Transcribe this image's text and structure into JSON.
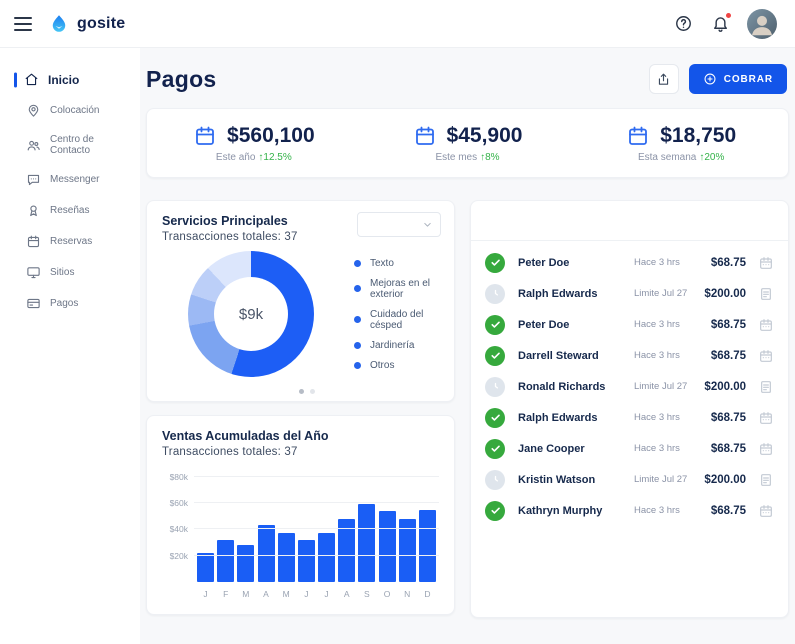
{
  "topbar": {
    "brand": "gosite",
    "icons": [
      "menu-icon",
      "gosite-logo-icon",
      "help-icon",
      "bell-icon",
      "avatar"
    ],
    "has_notification_badge": true
  },
  "sidebar": {
    "items": [
      {
        "label": "Inicio",
        "icon": "home",
        "active": true
      },
      {
        "label": "Colocación",
        "icon": "location-pin",
        "active": false
      },
      {
        "label": "Centro de Contacto",
        "icon": "contacts",
        "active": false
      },
      {
        "label": "Messenger",
        "icon": "chat",
        "active": false
      },
      {
        "label": "Reseñas",
        "icon": "badge",
        "active": false
      },
      {
        "label": "Reservas",
        "icon": "calendar",
        "active": false
      },
      {
        "label": "Sitios",
        "icon": "monitor",
        "active": false
      },
      {
        "label": "Pagos",
        "icon": "credit-card",
        "active": false
      }
    ]
  },
  "header": {
    "title": "Pagos",
    "collect_button": "COBRAR"
  },
  "stats": [
    {
      "amount": "$560,100",
      "label": "Este año",
      "change": "↑12.5%"
    },
    {
      "amount": "$45,900",
      "label": "Este mes",
      "change": "↑8%"
    },
    {
      "amount": "$18,750",
      "label": "Esta semana",
      "change": "↑20%"
    }
  ],
  "colors": {
    "primary_blue": "#1355e9",
    "bar_blue": "#1a5ef5",
    "green": "#35b34a",
    "navy": "#14264c"
  },
  "chart_data": [
    {
      "type": "pie",
      "title": "Servicios Principales",
      "subtitle": "Transacciones totales: 37",
      "center_label": "$9k",
      "categories": [
        "Texto",
        "Mejoras en el exterior",
        "Cuidado del césped",
        "Jardinería",
        "Otros"
      ],
      "values_percent": [
        55,
        17,
        8,
        8,
        12
      ],
      "slice_colors": [
        "#1d5ef5",
        "#7ca4f1",
        "#9cb9f4",
        "#bccff8",
        "#dce6fc"
      ],
      "legend_position": "right",
      "legend_dot_color": "#2563eb",
      "pagination_dot_colors": [
        "#b6bcc6",
        "#e2e5ea"
      ]
    },
    {
      "type": "bar",
      "title": "Ventas Acumuladas del Año",
      "subtitle": "Transacciones totales: 37",
      "categories": [
        "J",
        "F",
        "M",
        "A",
        "M",
        "J",
        "J",
        "A",
        "S",
        "O",
        "N",
        "D"
      ],
      "values": [
        22,
        32,
        28,
        43,
        37,
        32,
        37,
        48,
        59,
        54,
        48,
        55
      ],
      "unit": "thousands USD",
      "yticks": [
        80,
        60,
        40,
        20
      ],
      "ytick_labels": [
        "$80k",
        "$60k",
        "$40k",
        "$20k"
      ],
      "ylim": [
        0,
        85
      ],
      "grid": true
    }
  ],
  "transactions": {
    "rows": [
      {
        "name": "Peter Doe",
        "status": "paid",
        "time": "Hace 3 hrs",
        "amount": "$68.75"
      },
      {
        "name": "Ralph Edwards",
        "status": "pending",
        "time": "Limite Jul 27",
        "amount": "$200.00"
      },
      {
        "name": "Peter Doe",
        "status": "paid",
        "time": "Hace 3 hrs",
        "amount": "$68.75"
      },
      {
        "name": "Darrell Steward",
        "status": "paid",
        "time": "Hace 3 hrs",
        "amount": "$68.75"
      },
      {
        "name": "Ronald Richards",
        "status": "pending",
        "time": "Limite Jul 27",
        "amount": "$200.00"
      },
      {
        "name": "Ralph Edwards",
        "status": "paid",
        "time": "Hace 3 hrs",
        "amount": "$68.75"
      },
      {
        "name": "Jane Cooper",
        "status": "paid",
        "time": "Hace 3 hrs",
        "amount": "$68.75"
      },
      {
        "name": "Kristin Watson",
        "status": "pending",
        "time": "Limite Jul 27",
        "amount": "$200.00"
      },
      {
        "name": "Kathryn Murphy",
        "status": "paid",
        "time": "Hace 3 hrs",
        "amount": "$68.75"
      }
    ]
  }
}
